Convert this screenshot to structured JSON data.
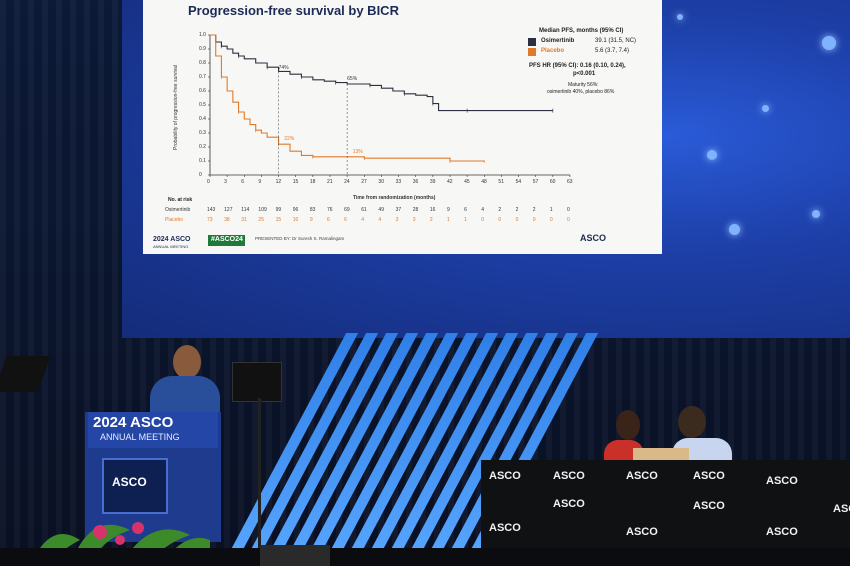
{
  "slide": {
    "title": "Progression-free survival by BICR",
    "legend_heading": "Median PFS, months (95% CI)",
    "arms": [
      {
        "name": "Osimertinib",
        "value": "39.1 (31.5, NC)",
        "color": "#2b2f3f"
      },
      {
        "name": "Placebo",
        "value": "5.6 (3.7, 7.4)",
        "color": "#e07a2a"
      }
    ],
    "hr_line1": "PFS HR (95% CI): 0.16 (0.10, 0.24),",
    "hr_line2": "p<0.001",
    "maturity_line1": "Maturity 56%:",
    "maturity_line2": "osimertinib 40%, placebo 86%",
    "y_label": "Probability of progression-free survival",
    "x_label": "Time from randomization (months)",
    "y_ticks": [
      "1.0",
      "0.9",
      "0.8",
      "0.7",
      "0.6",
      "0.5",
      "0.4",
      "0.3",
      "0.2",
      "0.1",
      "0"
    ],
    "x_ticks": [
      "0",
      "3",
      "6",
      "9",
      "12",
      "15",
      "18",
      "21",
      "24",
      "27",
      "30",
      "33",
      "36",
      "39",
      "42",
      "45",
      "48",
      "51",
      "54",
      "57",
      "60",
      "63"
    ],
    "annotations": [
      "74%",
      "65%",
      "22%",
      "13%"
    ],
    "no_at_risk_label": "No. at risk",
    "risk_rows": [
      {
        "label": "Osimertinib",
        "values": [
          "143",
          "127",
          "114",
          "109",
          "99",
          "96",
          "83",
          "76",
          "69",
          "61",
          "49",
          "37",
          "28",
          "16",
          "9",
          "6",
          "4",
          "2",
          "2",
          "2",
          "1",
          "0"
        ]
      },
      {
        "label": "Placebo",
        "values": [
          "73",
          "38",
          "31",
          "25",
          "15",
          "10",
          "9",
          "6",
          "6",
          "4",
          "4",
          "3",
          "3",
          "2",
          "1",
          "1",
          "0",
          "0",
          "0",
          "0",
          "0",
          "0"
        ]
      }
    ],
    "footer_logo": "2024 ASCO",
    "footer_meeting": "ANNUAL MEETING",
    "hashtag": "#ASCO24",
    "presenter": "PRESENTED BY: Dr Suresh S. Ramalingam",
    "asco_right": "ASCO"
  },
  "podium": {
    "logo": "2024 ASCO",
    "sub": "ANNUAL MEETING",
    "box_logo": "ASCO"
  },
  "table_logos": [
    "ASCO",
    "ASCO",
    "ASCO",
    "ASCO",
    "ASCO",
    "ASCO",
    "ASCO",
    "ASCO",
    "ASCO",
    "ASCO",
    "ASCO",
    "ASCO"
  ],
  "chart_data": {
    "type": "line",
    "title": "Progression-free survival by BICR",
    "xlabel": "Time from randomization (months)",
    "ylabel": "Probability of progression-free survival",
    "xlim": [
      0,
      63
    ],
    "ylim": [
      0,
      1.0
    ],
    "series": [
      {
        "name": "Osimertinib",
        "color": "#2b2f3f",
        "x": [
          0,
          1,
          2,
          3,
          4,
          5,
          6,
          8,
          10,
          12,
          14,
          16,
          18,
          20,
          22,
          24,
          26,
          28,
          30,
          32,
          34,
          36,
          38,
          39,
          40,
          42,
          45,
          50,
          55,
          60
        ],
        "y": [
          1.0,
          0.95,
          0.92,
          0.9,
          0.87,
          0.85,
          0.83,
          0.8,
          0.77,
          0.74,
          0.72,
          0.7,
          0.68,
          0.67,
          0.66,
          0.65,
          0.65,
          0.64,
          0.62,
          0.6,
          0.58,
          0.57,
          0.56,
          0.51,
          0.46,
          0.46,
          0.46,
          0.46,
          0.46,
          0.46
        ]
      },
      {
        "name": "Placebo",
        "color": "#e07a2a",
        "x": [
          0,
          1,
          2,
          3,
          4,
          5,
          6,
          7,
          8,
          9,
          10,
          12,
          14,
          16,
          18,
          20,
          24,
          27,
          30,
          36,
          42,
          48
        ],
        "y": [
          1.0,
          0.85,
          0.7,
          0.6,
          0.52,
          0.45,
          0.4,
          0.36,
          0.32,
          0.3,
          0.27,
          0.22,
          0.17,
          0.14,
          0.13,
          0.13,
          0.13,
          0.12,
          0.12,
          0.12,
          0.1,
          0.09
        ]
      }
    ]
  }
}
